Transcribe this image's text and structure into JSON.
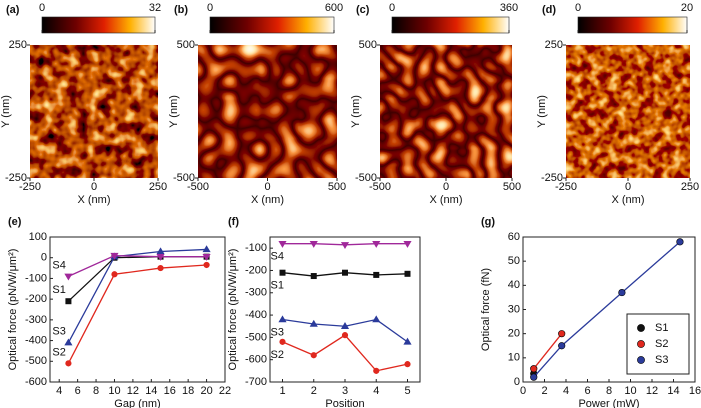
{
  "chart_data": [
    {
      "type": "heatmap",
      "panel": "(a)",
      "clim": [
        0,
        32
      ],
      "colorbar_ticks": [
        0,
        32
      ],
      "xlim": [
        -250,
        250
      ],
      "xticks": [
        -250,
        0,
        250
      ],
      "ylim": [
        -250,
        250
      ],
      "yticks": [
        -250,
        250
      ],
      "xlabel": "X (nm)",
      "ylabel": "Y (nm)"
    },
    {
      "type": "heatmap",
      "panel": "(b)",
      "clim": [
        0,
        600
      ],
      "colorbar_ticks": [
        0,
        600
      ],
      "xlim": [
        -500,
        500
      ],
      "xticks": [
        -500,
        0,
        500
      ],
      "ylim": [
        -500,
        500
      ],
      "yticks": [
        -500,
        500
      ],
      "xlabel": "X (nm)",
      "ylabel": "Y (nm)"
    },
    {
      "type": "heatmap",
      "panel": "(c)",
      "clim": [
        0,
        360
      ],
      "colorbar_ticks": [
        0,
        360
      ],
      "xlim": [
        -500,
        500
      ],
      "xticks": [
        -500,
        0,
        500
      ],
      "ylim": [
        -500,
        500
      ],
      "yticks": [
        -500,
        500
      ],
      "xlabel": "X (nm)",
      "ylabel": "Y (nm)"
    },
    {
      "type": "heatmap",
      "panel": "(d)",
      "clim": [
        0,
        20
      ],
      "colorbar_ticks": [
        0,
        20
      ],
      "xlim": [
        -250,
        250
      ],
      "xticks": [
        -250,
        0,
        250
      ],
      "ylim": [
        -250,
        250
      ],
      "yticks": [
        -250,
        250
      ],
      "xlabel": "X (nm)",
      "ylabel": "Y (nm)"
    },
    {
      "type": "line",
      "panel": "(e)",
      "xlabel": "Gap (nm)",
      "ylabel": "Optical force (pN/W/μm²)",
      "x": [
        5,
        10,
        15,
        20
      ],
      "xlim": [
        3,
        22
      ],
      "xticks": [
        4,
        6,
        8,
        10,
        12,
        14,
        16,
        18,
        20,
        22
      ],
      "ylim": [
        -600,
        100
      ],
      "yticks": [
        -600,
        -500,
        -400,
        -300,
        -200,
        -100,
        0,
        100
      ],
      "series": [
        {
          "name": "S1",
          "color": "#111111",
          "marker": "square",
          "values": [
            -210,
            0,
            5,
            5
          ]
        },
        {
          "name": "S2",
          "color": "#e0281e",
          "marker": "circle",
          "values": [
            -510,
            -80,
            -50,
            -35
          ]
        },
        {
          "name": "S3",
          "color": "#2b3b9b",
          "marker": "triangle-up",
          "values": [
            -410,
            5,
            30,
            40
          ]
        },
        {
          "name": "S4",
          "color": "#a0289a",
          "marker": "triangle-down",
          "values": [
            -90,
            10,
            5,
            5
          ]
        }
      ]
    },
    {
      "type": "line",
      "panel": "(f)",
      "xlabel": "Position",
      "ylabel": "Optical force (pN/W/μm²)",
      "x": [
        1,
        2,
        3,
        4,
        5
      ],
      "xlim": [
        0.6,
        5.4
      ],
      "xticks": [
        1,
        2,
        3,
        4,
        5
      ],
      "ylim": [
        -700,
        -50
      ],
      "yticks": [
        -700,
        -600,
        -500,
        -400,
        -300,
        -200,
        -100
      ],
      "series": [
        {
          "name": "S1",
          "color": "#111111",
          "marker": "square",
          "values": [
            -210,
            -225,
            -210,
            -220,
            -215
          ]
        },
        {
          "name": "S2",
          "color": "#e0281e",
          "marker": "circle",
          "values": [
            -520,
            -580,
            -490,
            -650,
            -620
          ]
        },
        {
          "name": "S3",
          "color": "#2b3b9b",
          "marker": "triangle-up",
          "values": [
            -420,
            -440,
            -450,
            -420,
            -520
          ]
        },
        {
          "name": "S4",
          "color": "#a0289a",
          "marker": "triangle-down",
          "values": [
            -80,
            -80,
            -85,
            -80,
            -80
          ]
        }
      ]
    },
    {
      "type": "scatter-line",
      "panel": "(g)",
      "xlabel": "Power (mW)",
      "ylabel": "Optical force (fN)",
      "xlim": [
        0,
        16
      ],
      "xticks": [
        0,
        2,
        4,
        6,
        8,
        10,
        12,
        14,
        16
      ],
      "ylim": [
        0,
        60
      ],
      "yticks": [
        0,
        10,
        20,
        30,
        40,
        50,
        60
      ],
      "legend": "lower right",
      "series": [
        {
          "name": "S1",
          "color": "#111111",
          "marker": "ball",
          "x": [
            1
          ],
          "values": [
            3.5
          ]
        },
        {
          "name": "S2",
          "color": "#e0281e",
          "marker": "ball",
          "x": [
            1,
            3.6
          ],
          "values": [
            5.5,
            20
          ]
        },
        {
          "name": "S3",
          "color": "#2b3b9b",
          "marker": "ball",
          "x": [
            1,
            3.6,
            9.2,
            14.6
          ],
          "values": [
            2,
            15,
            37,
            58
          ]
        }
      ]
    }
  ]
}
